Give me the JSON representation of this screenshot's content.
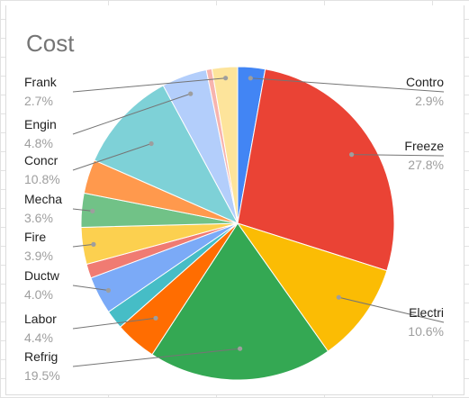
{
  "chart_data": {
    "type": "pie",
    "title": "Cost",
    "start_category": "Contro",
    "slices": [
      {
        "label": "Contro",
        "value": 2.9,
        "pct_label": "2.9%",
        "color": "#4285f4",
        "callout": true
      },
      {
        "label": "Freeze",
        "value": 27.8,
        "pct_label": "27.8%",
        "color": "#ea4335",
        "callout": true
      },
      {
        "label": "Electri",
        "value": 10.6,
        "pct_label": "10.6%",
        "color": "#fbbc04",
        "callout": true
      },
      {
        "label": "Refrig",
        "value": 19.5,
        "pct_label": "19.5%",
        "color": "#34a853",
        "callout": true
      },
      {
        "label": "Labor",
        "value": 4.4,
        "pct_label": "4.4%",
        "color": "#ff6d01",
        "callout": true
      },
      {
        "label": "",
        "value": 2.0,
        "pct_label": "",
        "color": "#46bdc6",
        "callout": false
      },
      {
        "label": "Ductw",
        "value": 4.0,
        "pct_label": "4.0%",
        "color": "#7baaf7",
        "callout": true
      },
      {
        "label": "",
        "value": 1.5,
        "pct_label": "",
        "color": "#f07b72",
        "callout": false
      },
      {
        "label": "Fire",
        "value": 3.9,
        "pct_label": "3.9%",
        "color": "#fcd04f",
        "callout": false
      },
      {
        "label": "Mecha",
        "value": 3.6,
        "pct_label": "3.6%",
        "color": "#71c287",
        "callout": false
      },
      {
        "label": "",
        "value": 3.6,
        "pct_label": "",
        "color": "#ff994d",
        "callout": false
      },
      {
        "label": "Concr",
        "value": 10.8,
        "pct_label": "10.8%",
        "color": "#7ed1d7",
        "callout": true
      },
      {
        "label": "Engin",
        "value": 4.8,
        "pct_label": "4.8%",
        "color": "#b3cefb",
        "callout": true
      },
      {
        "label": "",
        "value": 0.6,
        "pct_label": "",
        "color": "#f7b4ae",
        "callout": false
      },
      {
        "label": "Frank",
        "value": 2.7,
        "pct_label": "2.7%",
        "color": "#fde49b",
        "callout": true
      }
    ],
    "legend": "none",
    "labels": [
      {
        "slice": "Frank",
        "side": "left",
        "name": "Frank",
        "pct": "2.7%"
      },
      {
        "slice": "Engin",
        "side": "left",
        "name": "Engin",
        "pct": "4.8%"
      },
      {
        "slice": "Concr",
        "side": "left",
        "name": "Concr",
        "pct": "10.8%"
      },
      {
        "slice": "Mecha",
        "side": "left",
        "name": "Mecha",
        "pct": "3.6%"
      },
      {
        "slice": "Fire",
        "side": "left",
        "name": "Fire",
        "pct": "3.9%"
      },
      {
        "slice": "Ductw",
        "side": "left",
        "name": "Ductw",
        "pct": "4.0%"
      },
      {
        "slice": "Labor",
        "side": "left",
        "name": "Labor",
        "pct": "4.4%"
      },
      {
        "slice": "Refrig",
        "side": "left",
        "name": "Refrig",
        "pct": "19.5%"
      },
      {
        "slice": "Contro",
        "side": "right",
        "name": "Contro",
        "pct": "2.9%"
      },
      {
        "slice": "Freeze",
        "side": "right",
        "name": "Freeze",
        "pct": "27.8%"
      },
      {
        "slice": "Electri",
        "side": "right",
        "name": "Electri",
        "pct": "10.6%"
      }
    ]
  }
}
